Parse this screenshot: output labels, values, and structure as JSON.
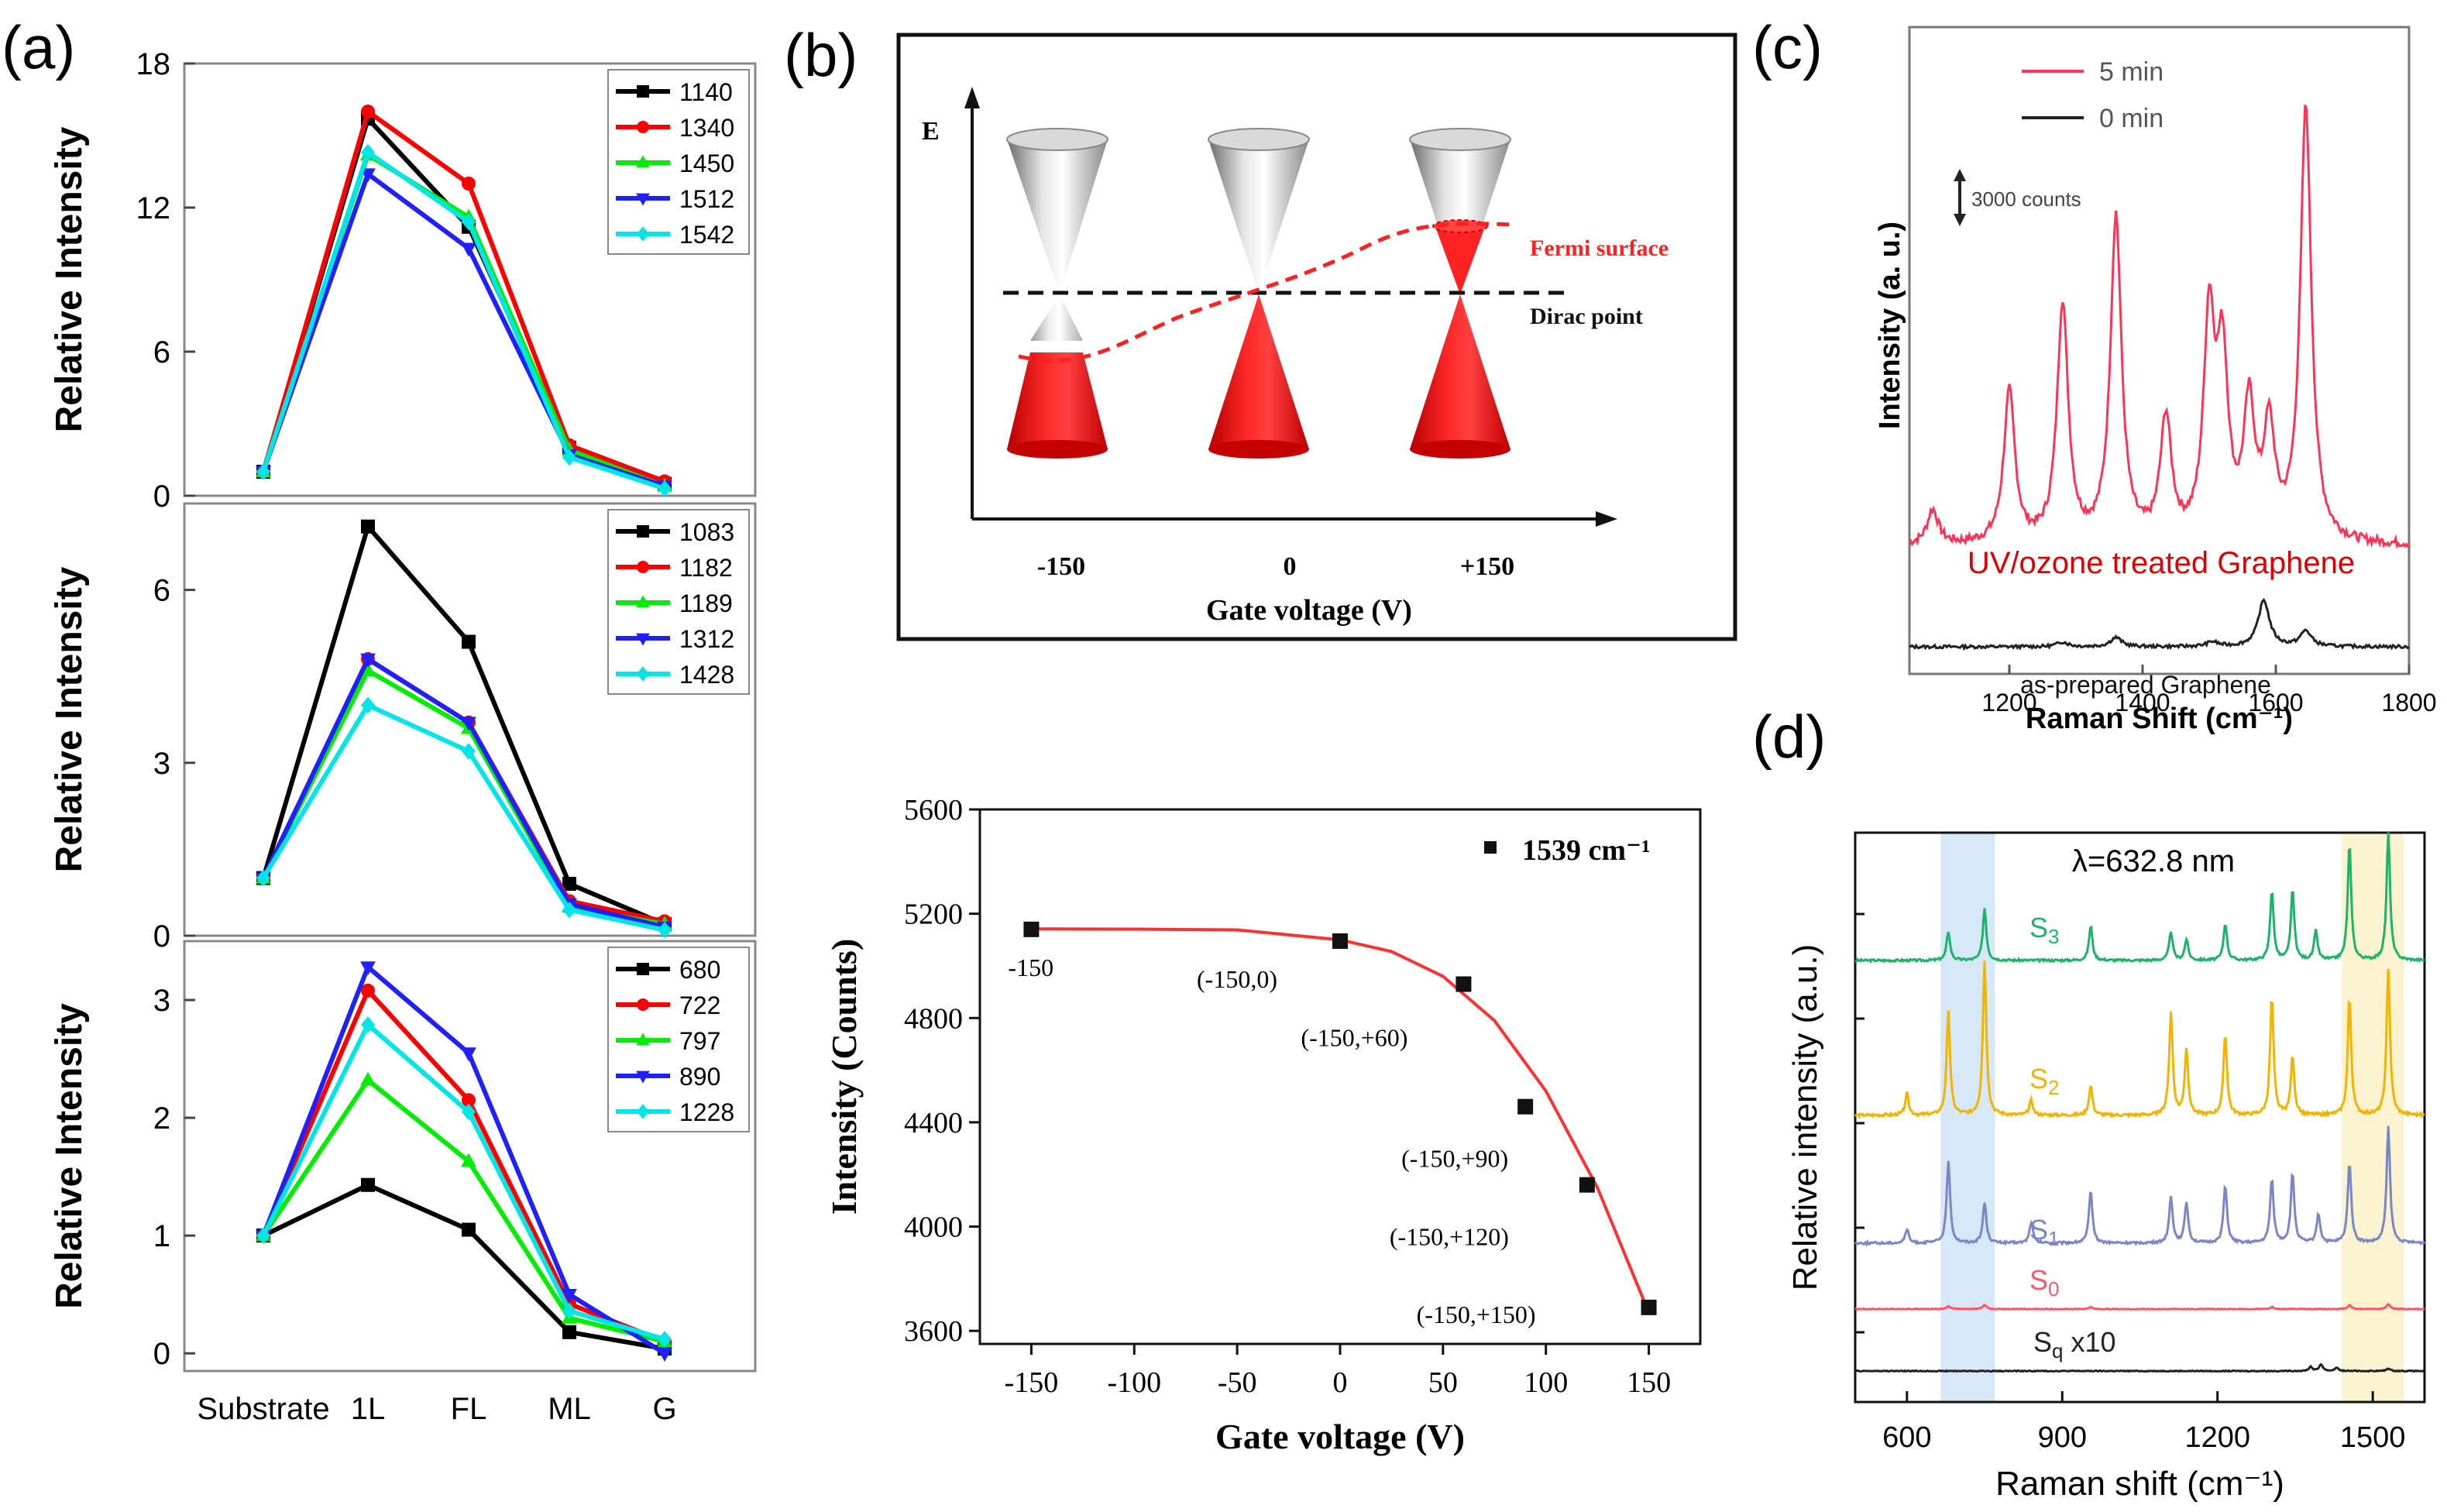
{
  "panel_labels": {
    "a": "(a)",
    "b": "(b)",
    "c": "(c)",
    "d": "(d)"
  },
  "chart_data": [
    {
      "id": "a1",
      "type": "line",
      "categories": [
        "Substrate",
        "1L",
        "FL",
        "ML",
        "G"
      ],
      "ylabel": "Relative Intensity",
      "ylim": [
        0,
        18
      ],
      "yticks": [
        0,
        6,
        12,
        18
      ],
      "series": [
        {
          "name": "1140",
          "color": "#000000",
          "marker": "square",
          "values": [
            1,
            15.7,
            11.2,
            2.0,
            0.5
          ]
        },
        {
          "name": "1340",
          "color": "#ff0000",
          "marker": "circle",
          "values": [
            1,
            16.0,
            13.0,
            2.1,
            0.6
          ]
        },
        {
          "name": "1450",
          "color": "#00ee00",
          "marker": "triangle-up",
          "values": [
            1,
            14.2,
            11.6,
            1.9,
            0.4
          ]
        },
        {
          "name": "1512",
          "color": "#2020ff",
          "marker": "triangle-down",
          "values": [
            1,
            13.4,
            10.3,
            1.7,
            0.4
          ]
        },
        {
          "name": "1542",
          "color": "#00e5e5",
          "marker": "diamond",
          "values": [
            1,
            14.3,
            11.4,
            1.6,
            0.3
          ]
        }
      ]
    },
    {
      "id": "a2",
      "type": "line",
      "categories": [
        "Substrate",
        "1L",
        "FL",
        "ML",
        "G"
      ],
      "ylabel": "Relative Intensity",
      "ylim": [
        0,
        7.5
      ],
      "yticks": [
        0,
        3,
        6
      ],
      "series": [
        {
          "name": "1083",
          "color": "#000000",
          "marker": "square",
          "values": [
            1,
            7.1,
            5.1,
            0.9,
            0.2
          ]
        },
        {
          "name": "1182",
          "color": "#ff0000",
          "marker": "circle",
          "values": [
            1,
            4.8,
            3.7,
            0.6,
            0.25
          ]
        },
        {
          "name": "1189",
          "color": "#00ee00",
          "marker": "triangle-up",
          "values": [
            1,
            4.6,
            3.6,
            0.5,
            0.2
          ]
        },
        {
          "name": "1312",
          "color": "#2020ff",
          "marker": "triangle-down",
          "values": [
            1,
            4.8,
            3.7,
            0.55,
            0.15
          ]
        },
        {
          "name": "1428",
          "color": "#00e5e5",
          "marker": "diamond",
          "values": [
            1,
            4.0,
            3.2,
            0.45,
            0.1
          ]
        }
      ]
    },
    {
      "id": "a3",
      "type": "line",
      "categories": [
        "Substrate",
        "1L",
        "FL",
        "ML",
        "G"
      ],
      "ylabel": "Relative Intensity",
      "ylim": [
        -0.15,
        3.5
      ],
      "yticks": [
        0,
        1,
        2,
        3
      ],
      "series": [
        {
          "name": "680",
          "color": "#000000",
          "marker": "square",
          "values": [
            1,
            1.43,
            1.05,
            0.18,
            0.04
          ]
        },
        {
          "name": "722",
          "color": "#ff0000",
          "marker": "circle",
          "values": [
            1,
            3.08,
            2.15,
            0.42,
            0.1
          ]
        },
        {
          "name": "797",
          "color": "#00ee00",
          "marker": "triangle-up",
          "values": [
            1,
            2.32,
            1.63,
            0.3,
            0.1
          ]
        },
        {
          "name": "890",
          "color": "#2020ff",
          "marker": "triangle-down",
          "values": [
            1,
            3.28,
            2.55,
            0.5,
            0.0
          ]
        },
        {
          "name": "1228",
          "color": "#00e5e5",
          "marker": "diamond",
          "values": [
            1,
            2.79,
            2.05,
            0.36,
            0.12
          ]
        }
      ]
    },
    {
      "id": "b-diagram",
      "type": "diagram",
      "ylabel": "E",
      "xlabel": "Gate voltage (V)",
      "tick_labels": [
        "-150",
        "0",
        "+150"
      ],
      "fermi_label": "Fermi surface",
      "dirac_label": "Dirac point"
    },
    {
      "id": "b-scatter",
      "type": "scatter",
      "xlabel": "Gate voltage (V)",
      "ylabel": "Intensity (Counts)",
      "xlim": [
        -175,
        175
      ],
      "ylim": [
        3550,
        5600
      ],
      "xticks": [
        -150,
        -100,
        -50,
        0,
        50,
        100,
        150
      ],
      "yticks": [
        3600,
        4000,
        4400,
        4800,
        5200,
        5600
      ],
      "legend": "1539 cm⁻¹",
      "x": [
        -150,
        0,
        60,
        90,
        120,
        150
      ],
      "y": [
        5140,
        5095,
        4930,
        4460,
        4160,
        3690
      ],
      "point_labels": [
        "-150",
        "(-150,0)",
        "(-150,+60)",
        "(-150,+90)",
        "(-150,+120)",
        "(-150,+150)"
      ],
      "fit": {
        "type": "line",
        "color": "#ff3030",
        "x": [
          -150,
          -100,
          -50,
          0,
          25,
          50,
          75,
          100,
          125,
          150
        ],
        "y": [
          5142,
          5141,
          5138,
          5100,
          5055,
          4960,
          4790,
          4520,
          4150,
          3670
        ]
      }
    },
    {
      "id": "c",
      "type": "line",
      "xlabel": "Raman Shift (cm⁻¹)",
      "ylabel": "Intensity (a. u.)",
      "xlim": [
        1050,
        1800
      ],
      "xticks": [
        1200,
        1400,
        1600,
        1800
      ],
      "scale_bar": "3000 counts",
      "annotations": [
        "UV/ozone treated Graphene",
        "as-prepared Graphene"
      ],
      "series": [
        {
          "name": "5 min",
          "color": "#ff3355",
          "peaks": [
            {
              "x": 1085,
              "h": 0.08
            },
            {
              "x": 1200,
              "h": 0.35
            },
            {
              "x": 1280,
              "h": 0.55
            },
            {
              "x": 1360,
              "h": 0.75
            },
            {
              "x": 1435,
              "h": 0.28
            },
            {
              "x": 1500,
              "h": 0.5
            },
            {
              "x": 1520,
              "h": 0.4
            },
            {
              "x": 1560,
              "h": 0.3
            },
            {
              "x": 1590,
              "h": 0.25
            },
            {
              "x": 1645,
              "h": 1.0
            }
          ]
        },
        {
          "name": "0 min",
          "color": "#222222",
          "peaks": [
            {
              "x": 1280,
              "h": 0.03
            },
            {
              "x": 1360,
              "h": 0.06
            },
            {
              "x": 1505,
              "h": 0.03
            },
            {
              "x": 1582,
              "h": 0.3
            },
            {
              "x": 1645,
              "h": 0.1
            }
          ]
        }
      ]
    },
    {
      "id": "d",
      "type": "line",
      "xlabel": "Raman shift (cm⁻¹)",
      "ylabel": "Relative intensity (a.u.)",
      "xlim": [
        500,
        1600
      ],
      "xticks": [
        600,
        900,
        1200,
        1500
      ],
      "annotation": "λ=632.8 nm",
      "series": [
        {
          "name": "S3",
          "label": "S",
          "sub": "3",
          "suffix": "",
          "color": "#1db36a",
          "peaks": [
            {
              "x": 680,
              "h": 0.25
            },
            {
              "x": 750,
              "h": 0.45
            },
            {
              "x": 955,
              "h": 0.3
            },
            {
              "x": 1110,
              "h": 0.25
            },
            {
              "x": 1140,
              "h": 0.18
            },
            {
              "x": 1215,
              "h": 0.32
            },
            {
              "x": 1305,
              "h": 0.6
            },
            {
              "x": 1345,
              "h": 0.6
            },
            {
              "x": 1390,
              "h": 0.25
            },
            {
              "x": 1455,
              "h": 1.0
            },
            {
              "x": 1530,
              "h": 1.1
            }
          ]
        },
        {
          "name": "S2",
          "label": "S",
          "sub": "2",
          "suffix": "",
          "color": "#f2b400",
          "peaks": [
            {
              "x": 600,
              "h": 0.15
            },
            {
              "x": 680,
              "h": 0.7
            },
            {
              "x": 750,
              "h": 1.05
            },
            {
              "x": 840,
              "h": 0.1
            },
            {
              "x": 955,
              "h": 0.2
            },
            {
              "x": 1110,
              "h": 0.7
            },
            {
              "x": 1140,
              "h": 0.45
            },
            {
              "x": 1215,
              "h": 0.55
            },
            {
              "x": 1305,
              "h": 0.8
            },
            {
              "x": 1345,
              "h": 0.4
            },
            {
              "x": 1455,
              "h": 0.8
            },
            {
              "x": 1530,
              "h": 1.0
            }
          ]
        },
        {
          "name": "S1",
          "label": "S",
          "sub": "1",
          "suffix": "",
          "color": "#7a86c8",
          "peaks": [
            {
              "x": 600,
              "h": 0.12
            },
            {
              "x": 680,
              "h": 0.7
            },
            {
              "x": 750,
              "h": 0.35
            },
            {
              "x": 840,
              "h": 0.18
            },
            {
              "x": 955,
              "h": 0.45
            },
            {
              "x": 1110,
              "h": 0.4
            },
            {
              "x": 1140,
              "h": 0.35
            },
            {
              "x": 1215,
              "h": 0.5
            },
            {
              "x": 1305,
              "h": 0.55
            },
            {
              "x": 1345,
              "h": 0.6
            },
            {
              "x": 1395,
              "h": 0.25
            },
            {
              "x": 1455,
              "h": 0.7
            },
            {
              "x": 1530,
              "h": 1.0
            }
          ]
        },
        {
          "name": "S0",
          "label": "S",
          "sub": "0",
          "suffix": "",
          "color": "#ff5566",
          "peaks": [
            {
              "x": 680,
              "h": 0.08
            },
            {
              "x": 750,
              "h": 0.12
            },
            {
              "x": 955,
              "h": 0.06
            },
            {
              "x": 1305,
              "h": 0.06
            },
            {
              "x": 1455,
              "h": 0.12
            },
            {
              "x": 1530,
              "h": 0.14
            }
          ]
        },
        {
          "name": "Sq x10",
          "label": "S",
          "sub": "q",
          "suffix": " x10",
          "color": "#222222",
          "peaks": [
            {
              "x": 1380,
              "h": 0.1
            },
            {
              "x": 1400,
              "h": 0.16
            },
            {
              "x": 1430,
              "h": 0.08
            },
            {
              "x": 1530,
              "h": 0.06
            }
          ]
        }
      ],
      "highlight_bands": [
        {
          "from": 665,
          "to": 770,
          "color": "#cfe3f5"
        },
        {
          "from": 1440,
          "to": 1560,
          "color": "#faf0c8"
        }
      ]
    }
  ]
}
